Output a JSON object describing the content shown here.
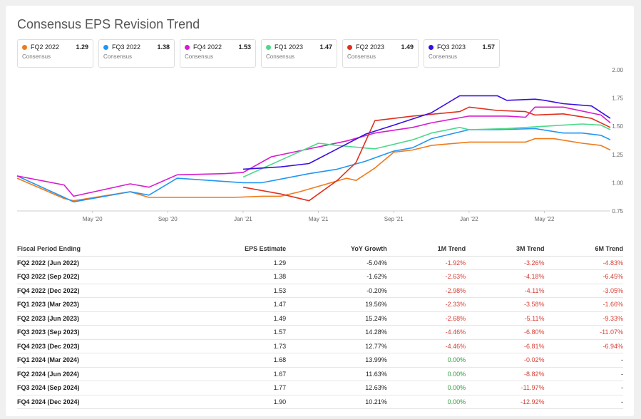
{
  "title": "Consensus EPS Revision Trend",
  "legend": [
    {
      "name": "FQ2 2022",
      "value": "1.29",
      "sub": "Consensus",
      "color": "#f07a1a"
    },
    {
      "name": "FQ3 2022",
      "value": "1.38",
      "sub": "Consensus",
      "color": "#2196f3"
    },
    {
      "name": "FQ4 2022",
      "value": "1.53",
      "sub": "Consensus",
      "color": "#d81bd0"
    },
    {
      "name": "FQ1 2023",
      "value": "1.47",
      "sub": "Consensus",
      "color": "#4cd98a"
    },
    {
      "name": "FQ2 2023",
      "value": "1.49",
      "sub": "Consensus",
      "color": "#e0301e"
    },
    {
      "name": "FQ3 2023",
      "value": "1.57",
      "sub": "Consensus",
      "color": "#3a0ee0"
    }
  ],
  "chart_data": {
    "type": "line",
    "title": "Consensus EPS Revision Trend",
    "x_tick_labels": [
      "May '20",
      "Sep '20",
      "Jan '21",
      "May '21",
      "Sep '21",
      "Jan '22",
      "May '22"
    ],
    "x_ticks_month_index": [
      4,
      8,
      12,
      16,
      20,
      24,
      28
    ],
    "x_range_month_index": [
      0,
      31.5
    ],
    "y_tick_labels": [
      "2.00",
      "1.75",
      "1.50",
      "1.25",
      "1.00",
      "0.75"
    ],
    "ylim": [
      0.75,
      2.0
    ],
    "y_axis_position": "right",
    "grid": false,
    "series": [
      {
        "name": "FQ2 2022",
        "color": "#f07a1a",
        "points": [
          [
            0,
            1.04
          ],
          [
            2.5,
            0.86
          ],
          [
            3,
            0.84
          ],
          [
            6,
            0.92
          ],
          [
            7,
            0.87
          ],
          [
            9,
            0.87
          ],
          [
            11.5,
            0.87
          ],
          [
            13,
            0.88
          ],
          [
            14,
            0.88
          ],
          [
            15,
            0.92
          ],
          [
            17.5,
            1.04
          ],
          [
            18,
            1.02
          ],
          [
            19,
            1.13
          ],
          [
            20,
            1.27
          ],
          [
            21,
            1.29
          ],
          [
            22,
            1.33
          ],
          [
            24,
            1.36
          ],
          [
            25.5,
            1.36
          ],
          [
            27,
            1.36
          ],
          [
            27.5,
            1.39
          ],
          [
            28.5,
            1.39
          ],
          [
            30,
            1.35
          ],
          [
            31,
            1.33
          ],
          [
            31.5,
            1.29
          ]
        ]
      },
      {
        "name": "FQ3 2022",
        "color": "#2196f3",
        "points": [
          [
            0,
            1.06
          ],
          [
            2.5,
            0.87
          ],
          [
            3,
            0.83
          ],
          [
            6,
            0.92
          ],
          [
            7,
            0.89
          ],
          [
            8.5,
            1.04
          ],
          [
            12,
            1.0
          ],
          [
            13,
            1.0
          ],
          [
            15.5,
            1.08
          ],
          [
            17,
            1.12
          ],
          [
            18.5,
            1.19
          ],
          [
            20,
            1.28
          ],
          [
            21,
            1.31
          ],
          [
            22,
            1.39
          ],
          [
            24,
            1.47
          ],
          [
            25.5,
            1.47
          ],
          [
            27.5,
            1.48
          ],
          [
            29,
            1.44
          ],
          [
            30,
            1.44
          ],
          [
            31,
            1.42
          ],
          [
            31.5,
            1.38
          ]
        ]
      },
      {
        "name": "FQ4 2022",
        "color": "#d81bd0",
        "points": [
          [
            0,
            1.06
          ],
          [
            2.5,
            0.98
          ],
          [
            3,
            0.88
          ],
          [
            6,
            0.99
          ],
          [
            7,
            0.96
          ],
          [
            8.5,
            1.07
          ],
          [
            11,
            1.08
          ],
          [
            12,
            1.09
          ],
          [
            13.5,
            1.23
          ],
          [
            15.5,
            1.3
          ],
          [
            17.5,
            1.37
          ],
          [
            19,
            1.44
          ],
          [
            21,
            1.49
          ],
          [
            22,
            1.53
          ],
          [
            24,
            1.59
          ],
          [
            26,
            1.59
          ],
          [
            27,
            1.58
          ],
          [
            27.5,
            1.67
          ],
          [
            29,
            1.67
          ],
          [
            31,
            1.6
          ],
          [
            31.5,
            1.53
          ]
        ]
      },
      {
        "name": "FQ1 2023",
        "color": "#4cd98a",
        "points": [
          [
            12,
            1.05
          ],
          [
            14,
            1.2
          ],
          [
            16,
            1.35
          ],
          [
            17,
            1.33
          ],
          [
            19,
            1.3
          ],
          [
            21,
            1.38
          ],
          [
            22,
            1.44
          ],
          [
            23.5,
            1.49
          ],
          [
            24,
            1.47
          ],
          [
            26,
            1.48
          ],
          [
            27,
            1.49
          ],
          [
            29,
            1.51
          ],
          [
            30,
            1.52
          ],
          [
            31,
            1.51
          ],
          [
            31.5,
            1.47
          ]
        ]
      },
      {
        "name": "FQ2 2023",
        "color": "#e0301e",
        "points": [
          [
            12,
            0.96
          ],
          [
            14,
            0.9
          ],
          [
            15.5,
            0.84
          ],
          [
            17,
            1.02
          ],
          [
            18,
            1.18
          ],
          [
            19,
            1.55
          ],
          [
            21,
            1.59
          ],
          [
            23.5,
            1.63
          ],
          [
            24,
            1.67
          ],
          [
            25.5,
            1.64
          ],
          [
            27,
            1.63
          ],
          [
            27.5,
            1.6
          ],
          [
            29,
            1.61
          ],
          [
            30.5,
            1.57
          ],
          [
            31.5,
            1.49
          ]
        ]
      },
      {
        "name": "FQ3 2023",
        "color": "#3a0ee0",
        "points": [
          [
            12,
            1.12
          ],
          [
            14,
            1.14
          ],
          [
            15.5,
            1.17
          ],
          [
            17,
            1.3
          ],
          [
            18.5,
            1.43
          ],
          [
            20,
            1.51
          ],
          [
            22,
            1.62
          ],
          [
            23.5,
            1.77
          ],
          [
            25.5,
            1.77
          ],
          [
            26,
            1.73
          ],
          [
            27.5,
            1.74
          ],
          [
            28,
            1.73
          ],
          [
            29,
            1.7
          ],
          [
            30.5,
            1.68
          ],
          [
            31.5,
            1.57
          ]
        ]
      }
    ]
  },
  "table": {
    "headers": [
      "Fiscal Period Ending",
      "EPS Estimate",
      "YoY Growth",
      "1M Trend",
      "3M Trend",
      "6M Trend"
    ],
    "rows": [
      [
        "FQ2 2022 (Jun 2022)",
        "1.29",
        "-5.04%",
        "-1.92%",
        "-3.26%",
        "-4.83%"
      ],
      [
        "FQ3 2022 (Sep 2022)",
        "1.38",
        "-1.62%",
        "-2.63%",
        "-4.18%",
        "-6.45%"
      ],
      [
        "FQ4 2022 (Dec 2022)",
        "1.53",
        "-0.20%",
        "-2.98%",
        "-4.11%",
        "-3.05%"
      ],
      [
        "FQ1 2023 (Mar 2023)",
        "1.47",
        "19.56%",
        "-2.33%",
        "-3.58%",
        "-1.66%"
      ],
      [
        "FQ2 2023 (Jun 2023)",
        "1.49",
        "15.24%",
        "-2.68%",
        "-5.11%",
        "-9.33%"
      ],
      [
        "FQ3 2023 (Sep 2023)",
        "1.57",
        "14.28%",
        "-4.46%",
        "-6.80%",
        "-11.07%"
      ],
      [
        "FQ4 2023 (Dec 2023)",
        "1.73",
        "12.77%",
        "-4.46%",
        "-6.81%",
        "-6.94%"
      ],
      [
        "FQ1 2024 (Mar 2024)",
        "1.68",
        "13.99%",
        "0.00%",
        "-0.02%",
        "-"
      ],
      [
        "FQ2 2024 (Jun 2024)",
        "1.67",
        "11.63%",
        "0.00%",
        "-8.82%",
        "-"
      ],
      [
        "FQ3 2024 (Sep 2024)",
        "1.77",
        "12.63%",
        "0.00%",
        "-11.97%",
        "-"
      ],
      [
        "FQ4 2024 (Dec 2024)",
        "1.90",
        "10.21%",
        "0.00%",
        "-12.92%",
        "-"
      ]
    ]
  }
}
